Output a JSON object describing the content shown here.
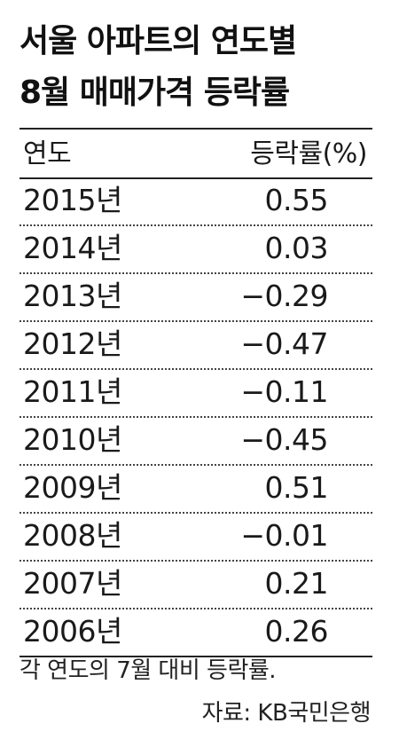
{
  "title": {
    "line1": "서울 아파트의 연도별",
    "line2": "8월 매매가격 등락률"
  },
  "table": {
    "headers": {
      "year": "연도",
      "rate": "등락률(%)"
    },
    "rows": [
      {
        "year": "2015년",
        "rate": "0.55"
      },
      {
        "year": "2014년",
        "rate": "0.03"
      },
      {
        "year": "2013년",
        "rate": "−0.29"
      },
      {
        "year": "2012년",
        "rate": "−0.47"
      },
      {
        "year": "2011년",
        "rate": "−0.11"
      },
      {
        "year": "2010년",
        "rate": "−0.45"
      },
      {
        "year": "2009년",
        "rate": "0.51"
      },
      {
        "year": "2008년",
        "rate": "−0.01"
      },
      {
        "year": "2007년",
        "rate": "0.21"
      },
      {
        "year": "2006년",
        "rate": "0.26"
      }
    ]
  },
  "note": "각 연도의 7월 대비 등락률.",
  "source": "자료: KB국민은행"
}
